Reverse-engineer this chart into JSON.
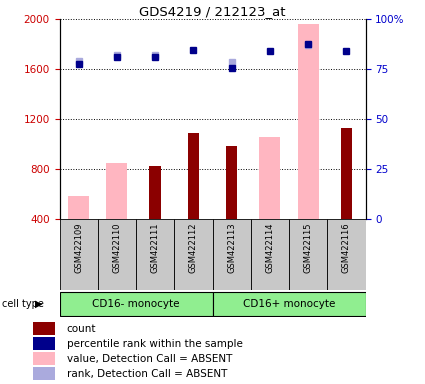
{
  "title": "GDS4219 / 212123_at",
  "samples": [
    "GSM422109",
    "GSM422110",
    "GSM422111",
    "GSM422112",
    "GSM422113",
    "GSM422114",
    "GSM422115",
    "GSM422116"
  ],
  "cell_types": [
    {
      "label": "CD16- monocyte",
      "start": 0,
      "end": 4
    },
    {
      "label": "CD16+ monocyte",
      "start": 4,
      "end": 8
    }
  ],
  "ylim_left": [
    400,
    2000
  ],
  "ylim_right": [
    0,
    100
  ],
  "yticks_left": [
    400,
    800,
    1200,
    1600,
    2000
  ],
  "yticks_right": [
    0,
    25,
    50,
    75,
    100
  ],
  "count_values": [
    null,
    null,
    820,
    1090,
    980,
    null,
    null,
    1130
  ],
  "value_absent": [
    580,
    850,
    null,
    null,
    null,
    1060,
    1960,
    null
  ],
  "percentile_values": [
    1645,
    1695,
    1700,
    1755,
    1605,
    1745,
    1800,
    1745
  ],
  "rank_absent_values": [
    1665,
    1710,
    1710,
    null,
    1660,
    null,
    1790,
    null
  ],
  "bar_color_count": "#8B0000",
  "bar_color_absent": "#FFB6C1",
  "dot_color_percentile": "#00008B",
  "dot_color_rank_absent": "#AAAADD",
  "axis_color_left": "#CC0000",
  "axis_color_right": "#0000CC",
  "cell_type_bg": "#90EE90",
  "sample_bg": "#C8C8C8",
  "legend_items": [
    {
      "label": "count",
      "color": "#8B0000"
    },
    {
      "label": "percentile rank within the sample",
      "color": "#00008B"
    },
    {
      "label": "value, Detection Call = ABSENT",
      "color": "#FFB6C1"
    },
    {
      "label": "rank, Detection Call = ABSENT",
      "color": "#AAAADD"
    }
  ]
}
